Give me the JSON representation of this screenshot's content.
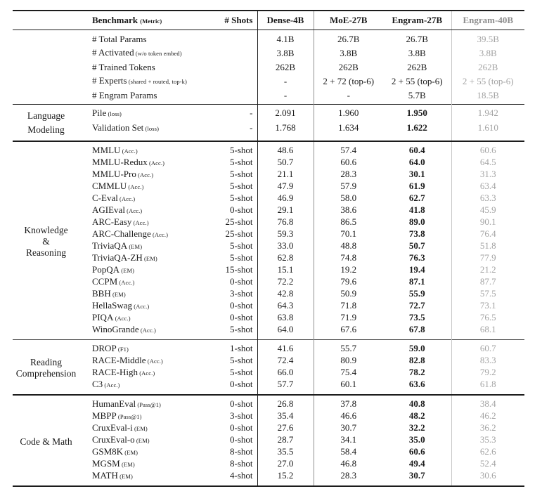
{
  "colors": {
    "text": "#191919",
    "muted_column": "#a3a3a3",
    "muted_header": "#8e8e8e",
    "rule_dark": "#1c1c1c",
    "rule_mid": "#909090",
    "rule_light": "#c8c8c8"
  },
  "table": {
    "header": {
      "benchmark": "Benchmark",
      "metric": "(Metric)",
      "shots": "# Shots",
      "models": [
        "Dense-4B",
        "MoE-27B",
        "Engram-27B",
        "Engram-40B"
      ]
    },
    "sections": [
      {
        "id": "model-config",
        "group_lines": [],
        "emphasize_col": null,
        "rule": "params",
        "rows": [
          {
            "benchmark": "# Total Params",
            "metric": "",
            "shots": "",
            "values": [
              "4.1B",
              "26.7B",
              "26.7B",
              "39.5B"
            ]
          },
          {
            "benchmark": "# Activated",
            "metric": "(w/o token embed)",
            "shots": "",
            "values": [
              "3.8B",
              "3.8B",
              "3.8B",
              "3.8B"
            ]
          },
          {
            "benchmark": "# Trained Tokens",
            "metric": "",
            "shots": "",
            "values": [
              "262B",
              "262B",
              "262B",
              "262B"
            ]
          },
          {
            "benchmark": "# Experts",
            "metric": "(shared + routed, top-k)",
            "shots": "",
            "values": [
              "-",
              "2 + 72 (top-6)",
              "2 + 55 (top-6)",
              "2 + 55 (top-6)"
            ]
          },
          {
            "benchmark": "# Engram Params",
            "metric": "",
            "shots": "",
            "values": [
              "-",
              "-",
              "5.7B",
              "18.5B"
            ]
          }
        ]
      },
      {
        "id": "language-modeling",
        "group_lines": [
          "Language",
          "Modeling"
        ],
        "emphasize_col": 2,
        "rule": "thick",
        "rows": [
          {
            "benchmark": "Pile",
            "metric": "(loss)",
            "shots": "-",
            "values": [
              "2.091",
              "1.960",
              "1.950",
              "1.942"
            ]
          },
          {
            "benchmark": "Validation Set",
            "metric": "(loss)",
            "shots": "-",
            "values": [
              "1.768",
              "1.634",
              "1.622",
              "1.610"
            ]
          }
        ]
      },
      {
        "id": "knowledge-reasoning",
        "group_lines": [
          "Knowledge",
          "&",
          "Reasoning"
        ],
        "emphasize_col": 2,
        "rule": "med",
        "rows": [
          {
            "benchmark": "MMLU",
            "metric": "(Acc.)",
            "shots": "5-shot",
            "values": [
              "48.6",
              "57.4",
              "60.4",
              "60.6"
            ]
          },
          {
            "benchmark": "MMLU-Redux",
            "metric": "(Acc.)",
            "shots": "5-shot",
            "values": [
              "50.7",
              "60.6",
              "64.0",
              "64.5"
            ]
          },
          {
            "benchmark": "MMLU-Pro",
            "metric": "(Acc.)",
            "shots": "5-shot",
            "values": [
              "21.1",
              "28.3",
              "30.1",
              "31.3"
            ]
          },
          {
            "benchmark": "CMMLU",
            "metric": "(Acc.)",
            "shots": "5-shot",
            "values": [
              "47.9",
              "57.9",
              "61.9",
              "63.4"
            ]
          },
          {
            "benchmark": "C-Eval",
            "metric": "(Acc.)",
            "shots": "5-shot",
            "values": [
              "46.9",
              "58.0",
              "62.7",
              "63.3"
            ]
          },
          {
            "benchmark": "AGIEval",
            "metric": "(Acc.)",
            "shots": "0-shot",
            "values": [
              "29.1",
              "38.6",
              "41.8",
              "45.9"
            ]
          },
          {
            "benchmark": "ARC-Easy",
            "metric": "(Acc.)",
            "shots": "25-shot",
            "values": [
              "76.8",
              "86.5",
              "89.0",
              "90.1"
            ]
          },
          {
            "benchmark": "ARC-Challenge",
            "metric": "(Acc.)",
            "shots": "25-shot",
            "values": [
              "59.3",
              "70.1",
              "73.8",
              "76.4"
            ]
          },
          {
            "benchmark": "TriviaQA",
            "metric": "(EM)",
            "shots": "5-shot",
            "values": [
              "33.0",
              "48.8",
              "50.7",
              "51.8"
            ]
          },
          {
            "benchmark": "TriviaQA-ZH",
            "metric": "(EM)",
            "shots": "5-shot",
            "values": [
              "62.8",
              "74.8",
              "76.3",
              "77.9"
            ]
          },
          {
            "benchmark": "PopQA",
            "metric": "(EM)",
            "shots": "15-shot",
            "values": [
              "15.1",
              "19.2",
              "19.4",
              "21.2"
            ]
          },
          {
            "benchmark": "CCPM",
            "metric": "(Acc.)",
            "shots": "0-shot",
            "values": [
              "72.2",
              "79.6",
              "87.1",
              "87.7"
            ]
          },
          {
            "benchmark": "BBH",
            "metric": "(EM)",
            "shots": "3-shot",
            "values": [
              "42.8",
              "50.9",
              "55.9",
              "57.5"
            ]
          },
          {
            "benchmark": "HellaSwag",
            "metric": "(Acc.)",
            "shots": "0-shot",
            "values": [
              "64.3",
              "71.8",
              "72.7",
              "73.1"
            ]
          },
          {
            "benchmark": "PIQA",
            "metric": "(Acc.)",
            "shots": "0-shot",
            "values": [
              "63.8",
              "71.9",
              "73.5",
              "76.5"
            ]
          },
          {
            "benchmark": "WinoGrande",
            "metric": "(Acc.)",
            "shots": "5-shot",
            "values": [
              "64.0",
              "67.6",
              "67.8",
              "68.1"
            ]
          }
        ]
      },
      {
        "id": "reading-comprehension",
        "group_lines": [
          "Reading",
          "Comprehension"
        ],
        "emphasize_col": 2,
        "rule": "thick",
        "rows": [
          {
            "benchmark": "DROP",
            "metric": "(F1)",
            "shots": "1-shot",
            "values": [
              "41.6",
              "55.7",
              "59.0",
              "60.7"
            ]
          },
          {
            "benchmark": "RACE-Middle",
            "metric": "(Acc.)",
            "shots": "5-shot",
            "values": [
              "72.4",
              "80.9",
              "82.8",
              "83.3"
            ]
          },
          {
            "benchmark": "RACE-High",
            "metric": "(Acc.)",
            "shots": "5-shot",
            "values": [
              "66.0",
              "75.4",
              "78.2",
              "79.2"
            ]
          },
          {
            "benchmark": "C3",
            "metric": "(Acc.)",
            "shots": "0-shot",
            "values": [
              "57.7",
              "60.1",
              "63.6",
              "61.8"
            ]
          }
        ]
      },
      {
        "id": "code-math",
        "group_lines": [
          "Code & Math"
        ],
        "emphasize_col": 2,
        "rule": "end",
        "rows": [
          {
            "benchmark": "HumanEval",
            "metric": "(Pass@1)",
            "shots": "0-shot",
            "values": [
              "26.8",
              "37.8",
              "40.8",
              "38.4"
            ]
          },
          {
            "benchmark": "MBPP",
            "metric": "(Pass@1)",
            "shots": "3-shot",
            "values": [
              "35.4",
              "46.6",
              "48.2",
              "46.2"
            ]
          },
          {
            "benchmark": "CruxEval-i",
            "metric": "(EM)",
            "shots": "0-shot",
            "values": [
              "27.6",
              "30.7",
              "32.2",
              "36.2"
            ]
          },
          {
            "benchmark": "CruxEval-o",
            "metric": "(EM)",
            "shots": "0-shot",
            "values": [
              "28.7",
              "34.1",
              "35.0",
              "35.3"
            ]
          },
          {
            "benchmark": "GSM8K",
            "metric": "(EM)",
            "shots": "8-shot",
            "values": [
              "35.5",
              "58.4",
              "60.6",
              "62.6"
            ]
          },
          {
            "benchmark": "MGSM",
            "metric": "(EM)",
            "shots": "8-shot",
            "values": [
              "27.0",
              "46.8",
              "49.4",
              "52.4"
            ]
          },
          {
            "benchmark": "MATH",
            "metric": "(EM)",
            "shots": "4-shot",
            "values": [
              "15.2",
              "28.3",
              "30.7",
              "30.6"
            ]
          }
        ]
      }
    ]
  }
}
